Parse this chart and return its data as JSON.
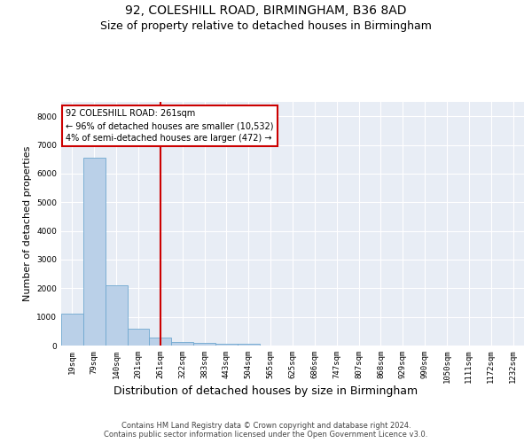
{
  "title_line1": "92, COLESHILL ROAD, BIRMINGHAM, B36 8AD",
  "title_line2": "Size of property relative to detached houses in Birmingham",
  "xlabel": "Distribution of detached houses by size in Birmingham",
  "ylabel": "Number of detached properties",
  "footnote": "Contains HM Land Registry data © Crown copyright and database right 2024.\nContains public sector information licensed under the Open Government Licence v3.0.",
  "bar_labels": [
    "19sqm",
    "79sqm",
    "140sqm",
    "201sqm",
    "261sqm",
    "322sqm",
    "383sqm",
    "443sqm",
    "504sqm",
    "565sqm",
    "625sqm",
    "686sqm",
    "747sqm",
    "807sqm",
    "868sqm",
    "929sqm",
    "990sqm",
    "1050sqm",
    "1111sqm",
    "1172sqm",
    "1232sqm"
  ],
  "bar_values": [
    1100,
    6550,
    2100,
    600,
    270,
    130,
    80,
    50,
    50,
    0,
    0,
    0,
    0,
    0,
    0,
    0,
    0,
    0,
    0,
    0,
    0
  ],
  "bar_color": "#bad0e8",
  "bar_edge_color": "#6fa8d0",
  "vline_x": 4.5,
  "vline_color": "#cc0000",
  "annotation_box_text": "92 COLESHILL ROAD: 261sqm\n← 96% of detached houses are smaller (10,532)\n4% of semi-detached houses are larger (472) →",
  "annotation_box_color": "#cc0000",
  "ylim": [
    0,
    8500
  ],
  "yticks": [
    0,
    1000,
    2000,
    3000,
    4000,
    5000,
    6000,
    7000,
    8000
  ],
  "background_color": "#e8edf5",
  "grid_color": "#ffffff",
  "title_fontsize": 10,
  "subtitle_fontsize": 9,
  "tick_fontsize": 6.5,
  "ylabel_fontsize": 8,
  "xlabel_fontsize": 9,
  "annotation_fontsize": 7
}
